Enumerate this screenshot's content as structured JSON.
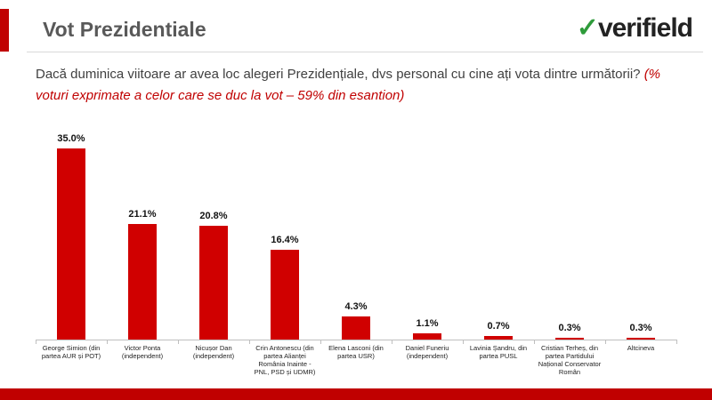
{
  "header": {
    "title": "Vot Prezidentiale",
    "logo": "verifield"
  },
  "question": {
    "text": "Dacă duminica viitoare ar avea loc alegeri Prezidențiale, dvs personal cu cine ați vota dintre următorii?",
    "note": "(% voturi exprimate a celor care se duc la vot – 59% din esantion)"
  },
  "chart_data": {
    "type": "bar",
    "categories": [
      "George Simion (din partea AUR și POT)",
      "Victor Ponta (independent)",
      "Nicușor Dan (independent)",
      "Crin Antonescu (din partea Alianței România Inainte - PNL, PSD și UDMR)",
      "Elena Lasconi (din partea USR)",
      "Daniel Funeriu (independent)",
      "Lavinia Șandru, din partea PUSL",
      "Cristian Terheș, din partea Partidului Național Conservator Român",
      "Altcineva"
    ],
    "values": [
      35.0,
      21.1,
      20.8,
      16.4,
      4.3,
      1.1,
      0.7,
      0.3,
      0.3
    ],
    "value_labels": [
      "35.0%",
      "21.1%",
      "20.8%",
      "16.4%",
      "4.3%",
      "1.1%",
      "0.7%",
      "0.3%",
      "0.3%"
    ],
    "color": "#d00000"
  }
}
